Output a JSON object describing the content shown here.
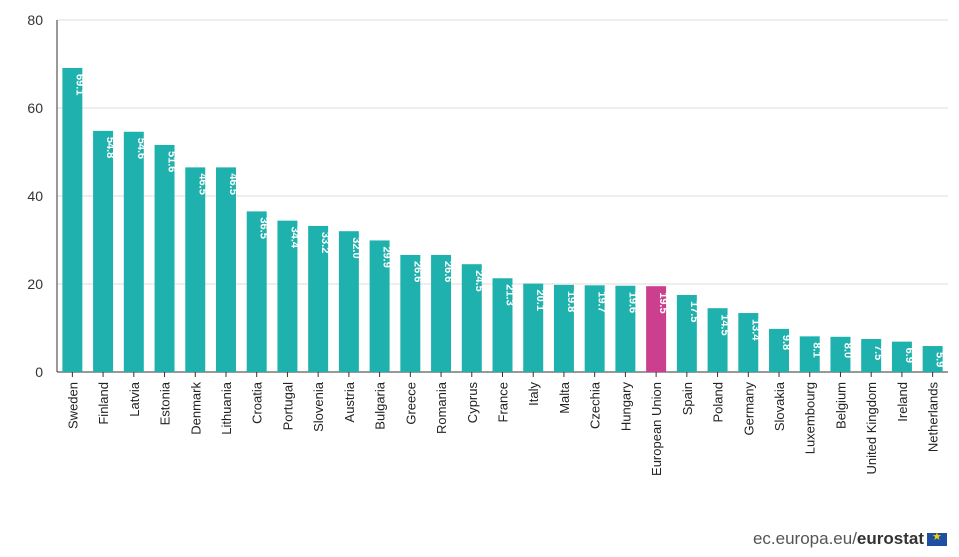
{
  "chart_data": {
    "type": "bar",
    "categories": [
      "Sweden",
      "Finland",
      "Latvia",
      "Estonia",
      "Denmark",
      "Lithuania",
      "Croatia",
      "Portugal",
      "Slovenia",
      "Austria",
      "Bulgaria",
      "Greece",
      "Romania",
      "Cyprus",
      "France",
      "Italy",
      "Malta",
      "Czechia",
      "Hungary",
      "European Union",
      "Spain",
      "Poland",
      "Germany",
      "Slovakia",
      "Luxembourg",
      "Belgium",
      "United Kingdom",
      "Ireland",
      "Netherlands"
    ],
    "values": [
      69.1,
      54.8,
      54.6,
      51.6,
      46.5,
      46.5,
      36.5,
      34.4,
      33.2,
      32.0,
      29.9,
      26.6,
      26.6,
      24.5,
      21.3,
      20.1,
      19.8,
      19.7,
      19.6,
      19.5,
      17.5,
      14.5,
      13.4,
      9.8,
      8.1,
      8.0,
      7.5,
      6.9,
      5.9
    ],
    "value_labels": [
      "69.1",
      "54.8",
      "54.6",
      "51.6",
      "46.5",
      "46.5",
      "36.5",
      "34.4",
      "33.2",
      "32.0",
      "29.9",
      "26.6",
      "26.6",
      "24.5",
      "21.3",
      "20.1",
      "19.8",
      "19.7",
      "19.6",
      "19.5",
      "17.5",
      "14.5",
      "13.4",
      "9.8",
      "8.1",
      "8.0",
      "7.5",
      "6.9",
      "5.9"
    ],
    "ylim": [
      0,
      80
    ],
    "yticks": [
      "0",
      "20",
      "40",
      "60",
      "80"
    ],
    "grid": true,
    "colors": {
      "default": "#1fb1ad",
      "highlight": "#cc3f8e",
      "highlight_category": "European Union"
    }
  },
  "footer": {
    "source": "ec.europa.eu/",
    "brand": "eurostat"
  }
}
